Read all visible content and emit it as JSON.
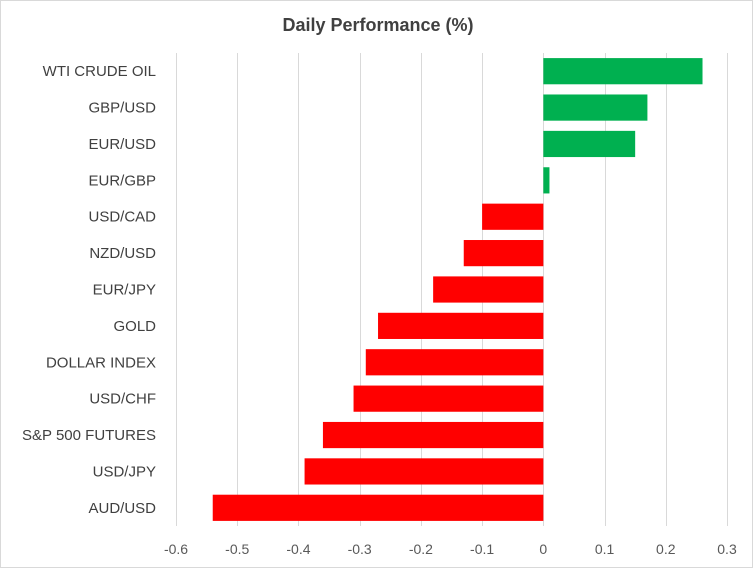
{
  "chart_data": {
    "type": "bar",
    "orientation": "horizontal",
    "title": "Daily Performance  (%)",
    "categories": [
      "WTI CRUDE OIL",
      "GBP/USD",
      "EUR/USD",
      "EUR/GBP",
      "USD/CAD",
      "NZD/USD",
      "EUR/JPY",
      "GOLD",
      "DOLLAR INDEX",
      "USD/CHF",
      "S&P 500 FUTURES",
      "USD/JPY",
      "AUD/USD"
    ],
    "values": [
      0.26,
      0.17,
      0.15,
      0.01,
      -0.1,
      -0.13,
      -0.18,
      -0.27,
      -0.29,
      -0.31,
      -0.36,
      -0.39,
      -0.54
    ],
    "xlim": [
      -0.6,
      0.3
    ],
    "x_ticks": [
      "-0.6",
      "-0.5",
      "-0.4",
      "-0.3",
      "-0.2",
      "-0.1",
      "0",
      "0.1",
      "0.2",
      "0.3"
    ],
    "grid": true,
    "legend": "none",
    "colors": {
      "positive": "#00b050",
      "negative": "#ff0000",
      "grid": "#d9d9d9",
      "text": "#404040"
    }
  }
}
